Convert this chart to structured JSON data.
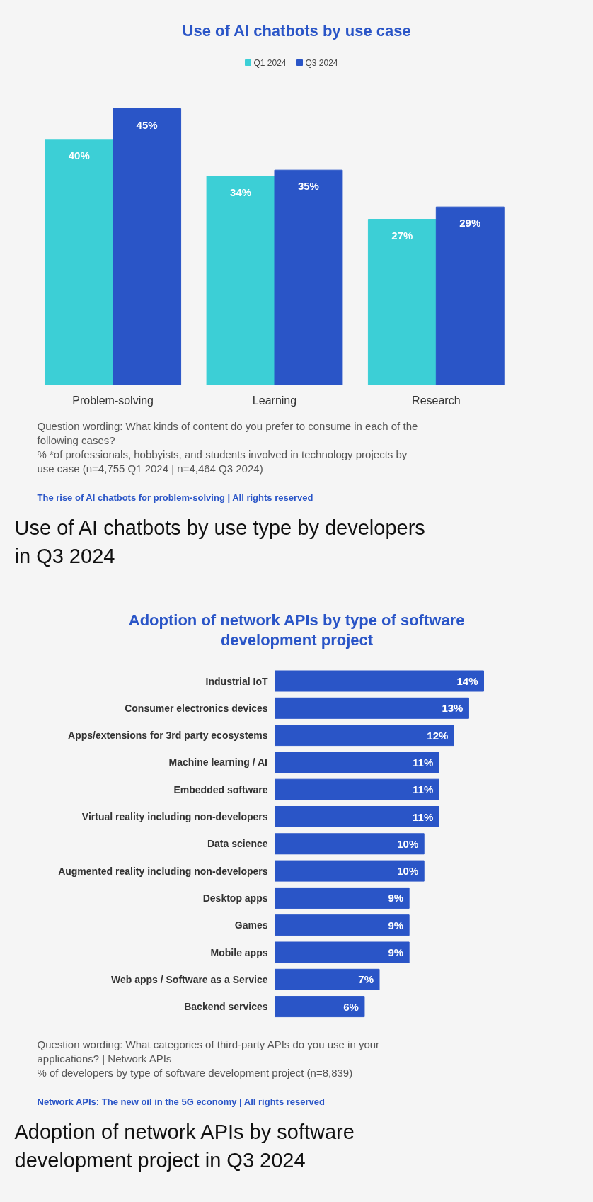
{
  "chart_data": [
    {
      "type": "bar",
      "title": "Use of AI chatbots by use case",
      "categories": [
        "Problem-solving",
        "Learning",
        "Research"
      ],
      "series": [
        {
          "name": "Q1 2024",
          "color": "#3ccfd6",
          "values": [
            40,
            34,
            27
          ],
          "value_labels": [
            "40%",
            "34%",
            "27%"
          ]
        },
        {
          "name": "Q3 2024",
          "color": "#2a55c7",
          "values": [
            45,
            35,
            29
          ],
          "value_labels": [
            "45%",
            "35%",
            "29%"
          ]
        }
      ],
      "legend": "top",
      "tick_labels": "x",
      "annotations": [
        "Question wording: What kinds of content do you prefer to consume in each of the following cases?",
        "% *of professionals, hobbyists, and students involved in technology projects by use case (n=4,755 Q1 2024 | n=4,464 Q3 2024)",
        "The rise of AI chatbots for problem-solving | All rights reserved",
        "Use of AI chatbots by use type by developers in Q3 2024"
      ]
    },
    {
      "type": "bar",
      "orientation": "horizontal",
      "title": "Adoption of network APIs by type of software development project",
      "categories": [
        "Industrial IoT",
        "Consumer electronics devices",
        "Apps/extensions for 3rd party ecosystems",
        "Machine learning / AI",
        "Embedded software",
        "Virtual reality including non-developers",
        "Data science",
        "Augmented reality including non-developers",
        "Desktop apps",
        "Games",
        "Mobile apps",
        "Web apps / Software as a Service",
        "Backend services"
      ],
      "series": [
        {
          "color": "#2a55c7",
          "values": [
            14,
            13,
            12,
            11,
            11,
            11,
            10,
            10,
            9,
            9,
            9,
            7,
            6
          ],
          "value_labels": [
            "14%",
            "13%",
            "12%",
            "11%",
            "11%",
            "11%",
            "10%",
            "10%",
            "9%",
            "9%",
            "9%",
            "7%",
            "6%"
          ]
        }
      ],
      "legend": false,
      "tick_labels": "y",
      "annotations": [
        "Question wording: What categories of third-party APIs do you use in your applications? | Network APIs",
        "% of developers by type of software development project (n=8,839)",
        "Network APIs: The new oil in the 5G economy | All rights reserved",
        "Adoption of network APIs by software development project in Q3 2024"
      ]
    }
  ]
}
